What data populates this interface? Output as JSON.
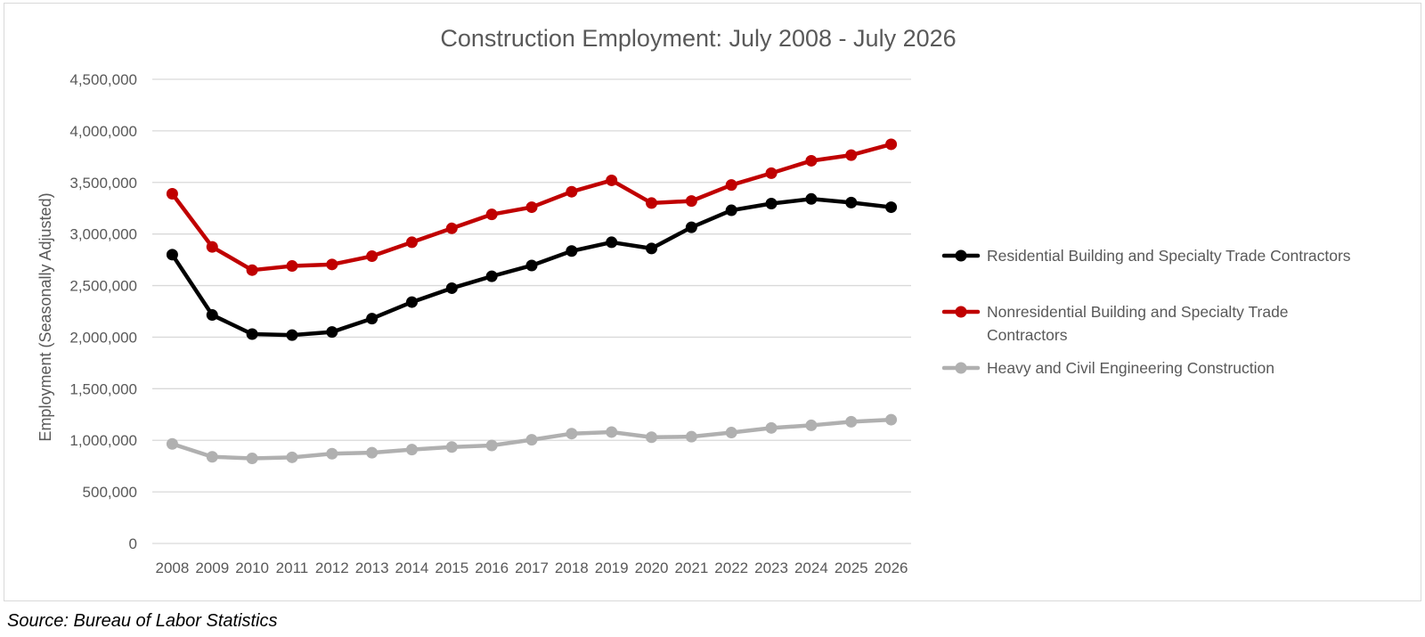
{
  "chart_data": {
    "type": "line",
    "title": "Construction Employment: July 2008 - July 2026",
    "xlabel": "",
    "ylabel": "Employment (Seasonally Adjusted)",
    "ylim": [
      0,
      4500000
    ],
    "ytick_values": [
      0,
      500000,
      1000000,
      1500000,
      2000000,
      2500000,
      3000000,
      3500000,
      4000000,
      4500000
    ],
    "ytick_labels": [
      "0",
      "500,000",
      "1,000,000",
      "1,500,000",
      "2,000,000",
      "2,500,000",
      "3,000,000",
      "3,500,000",
      "4,000,000",
      "4,500,000"
    ],
    "categories": [
      "2008",
      "2009",
      "2010",
      "2011",
      "2012",
      "2013",
      "2014",
      "2015",
      "2016",
      "2017",
      "2018",
      "2019",
      "2020",
      "2021",
      "2022",
      "2023",
      "2024",
      "2025",
      "2026"
    ],
    "grid": "horizontal",
    "legend_position": "right",
    "series": [
      {
        "name": "Residential Building and Specialty Trade Contractors",
        "color": "#000000",
        "values": [
          2800000,
          2215000,
          2030000,
          2020000,
          2050000,
          2180000,
          2340000,
          2475000,
          2590000,
          2695000,
          2835000,
          2920000,
          2860000,
          3065000,
          3230000,
          3295000,
          3340000,
          3305000,
          3260000
        ]
      },
      {
        "name": "Nonresidential Building and Specialty Trade Contractors",
        "color": "#c00000",
        "values": [
          3390000,
          2875000,
          2650000,
          2690000,
          2705000,
          2785000,
          2920000,
          3055000,
          3190000,
          3260000,
          3410000,
          3520000,
          3300000,
          3320000,
          3475000,
          3590000,
          3710000,
          3765000,
          3870000
        ]
      },
      {
        "name": "Heavy and Civil Engineering Construction",
        "color": "#b0b0b0",
        "values": [
          965000,
          840000,
          825000,
          835000,
          870000,
          880000,
          910000,
          935000,
          950000,
          1005000,
          1065000,
          1080000,
          1030000,
          1035000,
          1075000,
          1120000,
          1145000,
          1180000,
          1200000
        ]
      }
    ]
  },
  "source": {
    "text": "Source: Bureau of Labor Statistics"
  }
}
